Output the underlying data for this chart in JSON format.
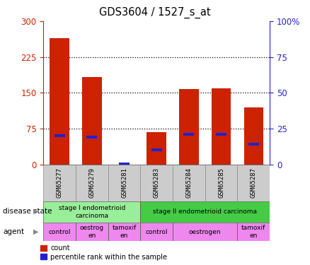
{
  "title": "GDS3604 / 1527_s_at",
  "samples": [
    "GSM65277",
    "GSM65279",
    "GSM65281",
    "GSM65283",
    "GSM65284",
    "GSM65285",
    "GSM65287"
  ],
  "count_values": [
    265,
    183,
    0,
    68,
    158,
    160,
    120
  ],
  "percentile_values": [
    20,
    19,
    0,
    10,
    21,
    21,
    14
  ],
  "left_ylim": [
    0,
    300
  ],
  "right_ylim": [
    0,
    100
  ],
  "left_yticks": [
    0,
    75,
    150,
    225,
    300
  ],
  "right_yticks": [
    0,
    25,
    50,
    75,
    100
  ],
  "right_yticklabels": [
    "0",
    "25",
    "50",
    "75",
    "100%"
  ],
  "bar_color_red": "#cc2200",
  "bar_color_blue": "#2222cc",
  "bar_width": 0.6,
  "disease_state_groups": [
    {
      "label": "stage I endometrioid\ncarcinoma",
      "start": 0,
      "end": 3,
      "color": "#99ee99"
    },
    {
      "label": "stage II endometrioid carcinoma",
      "start": 3,
      "end": 7,
      "color": "#44cc44"
    }
  ],
  "agent_groups": [
    {
      "label": "control",
      "start": 0,
      "end": 1,
      "color": "#ee88ee"
    },
    {
      "label": "oestrog\nen",
      "start": 1,
      "end": 2,
      "color": "#ee88ee"
    },
    {
      "label": "tamoxif\nen",
      "start": 2,
      "end": 3,
      "color": "#ee88ee"
    },
    {
      "label": "control",
      "start": 3,
      "end": 4,
      "color": "#ee88ee"
    },
    {
      "label": "oestrogen",
      "start": 4,
      "end": 6,
      "color": "#ee88ee"
    },
    {
      "label": "tamoxif\nen",
      "start": 6,
      "end": 7,
      "color": "#ee88ee"
    }
  ],
  "tick_color_left": "#cc2200",
  "tick_color_right": "#2222cc",
  "sample_bg": "#cccccc"
}
